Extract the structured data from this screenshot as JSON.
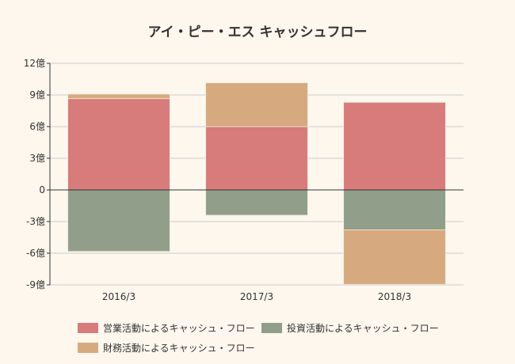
{
  "chart_data": {
    "type": "bar",
    "stacked": true,
    "title": "アイ・ピー・エス キャッシュフロー",
    "categories": [
      "2016/3",
      "2017/3",
      "2018/3"
    ],
    "yticks": [
      "12億",
      "9億",
      "6億",
      "3億",
      "0",
      "-3億",
      "-6億",
      "-9億"
    ],
    "ylim": [
      -9,
      12
    ],
    "yunit": "億",
    "grid": true,
    "legend_position": "bottom",
    "series": [
      {
        "name": "営業活動によるキャッシュ・フロー",
        "color": "#d87b7b",
        "values": [
          8.65,
          6.0,
          8.3
        ]
      },
      {
        "name": "投資活動によるキャッシュ・フロー",
        "color": "#919e8a",
        "values": [
          -5.83,
          -2.4,
          -3.78
        ]
      },
      {
        "name": "財務活動によるキャッシュ・フロー",
        "color": "#d6aa7e",
        "values": [
          0.43,
          4.15,
          -5.17
        ]
      }
    ]
  }
}
